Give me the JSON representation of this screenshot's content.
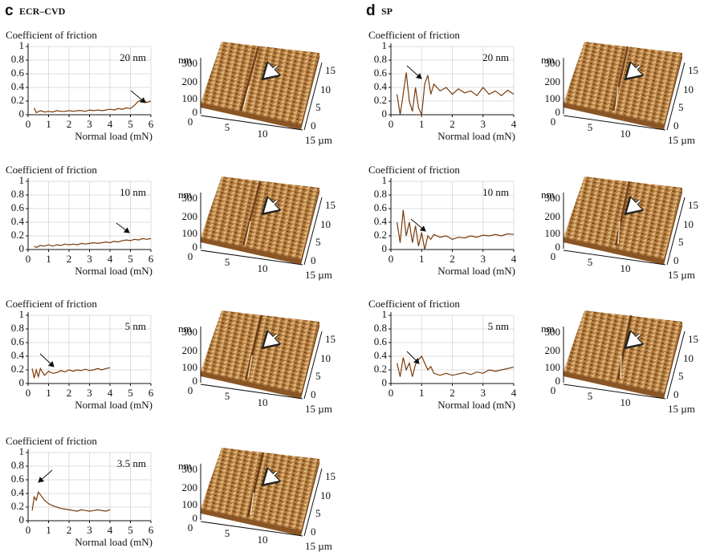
{
  "panels": [
    {
      "letter": "c",
      "title": "ECR–CVD"
    },
    {
      "letter": "d",
      "title": "SP"
    }
  ],
  "afm_axes": {
    "z_unit": "nm",
    "z_ticks": [
      "300",
      "200",
      "100",
      "0"
    ],
    "x_ticks": [
      "0",
      "5",
      "10",
      "15 µm"
    ],
    "y_ticks": [
      "15",
      "10",
      "5",
      "0"
    ]
  },
  "chart_data": [
    {
      "type": "line",
      "ylabel": "Coefficient of friction",
      "xlabel": "Normal load (mN)",
      "annotation": "20 nm",
      "color": "#7a3b0a",
      "grid": true,
      "xlim": [
        0,
        6
      ],
      "ylim": [
        0,
        1
      ],
      "xticks": [
        0,
        1,
        2,
        3,
        4,
        5,
        6
      ],
      "yticks": [
        0,
        0.2,
        0.4,
        0.6,
        0.8,
        1
      ],
      "x": [
        0.3,
        0.4,
        0.6,
        0.8,
        1,
        1.2,
        1.4,
        1.6,
        1.8,
        2,
        2.2,
        2.4,
        2.6,
        2.8,
        3,
        3.2,
        3.4,
        3.6,
        3.8,
        4,
        4.2,
        4.4,
        4.6,
        4.8,
        5,
        5.2,
        5.4,
        5.6,
        5.8,
        6
      ],
      "values": [
        0.1,
        0.03,
        0.06,
        0.04,
        0.05,
        0.04,
        0.06,
        0.05,
        0.05,
        0.06,
        0.05,
        0.06,
        0.06,
        0.05,
        0.07,
        0.06,
        0.07,
        0.06,
        0.07,
        0.08,
        0.07,
        0.09,
        0.08,
        0.1,
        0.09,
        0.14,
        0.2,
        0.22,
        0.18,
        0.2
      ]
    },
    {
      "type": "line",
      "ylabel": "Coefficient of friction",
      "xlabel": "Normal load (mN)",
      "annotation": "10 nm",
      "color": "#7a3b0a",
      "grid": true,
      "xlim": [
        0,
        6
      ],
      "ylim": [
        0,
        1
      ],
      "xticks": [
        0,
        1,
        2,
        3,
        4,
        5,
        6
      ],
      "yticks": [
        0,
        0.2,
        0.4,
        0.6,
        0.8,
        1
      ],
      "x": [
        0.3,
        0.4,
        0.6,
        0.8,
        1,
        1.2,
        1.4,
        1.6,
        1.8,
        2,
        2.2,
        2.4,
        2.6,
        2.8,
        3,
        3.2,
        3.4,
        3.6,
        3.8,
        4,
        4.2,
        4.4,
        4.6,
        4.8,
        5,
        5.2,
        5.4,
        5.6,
        5.8,
        6
      ],
      "values": [
        0.05,
        0.03,
        0.06,
        0.05,
        0.07,
        0.05,
        0.07,
        0.06,
        0.08,
        0.07,
        0.08,
        0.07,
        0.09,
        0.08,
        0.09,
        0.1,
        0.09,
        0.1,
        0.11,
        0.1,
        0.12,
        0.11,
        0.13,
        0.14,
        0.13,
        0.15,
        0.14,
        0.16,
        0.15,
        0.16
      ]
    },
    {
      "type": "line",
      "ylabel": "Coefficient of friction",
      "xlabel": "Normal load (mN)",
      "annotation": "5 nm",
      "color": "#7a3b0a",
      "grid": true,
      "xlim": [
        0,
        6
      ],
      "ylim": [
        0,
        1
      ],
      "xticks": [
        0,
        1,
        2,
        3,
        4,
        5,
        6
      ],
      "yticks": [
        0,
        0.2,
        0.4,
        0.6,
        0.8,
        1
      ],
      "x": [
        0.2,
        0.3,
        0.4,
        0.5,
        0.6,
        0.8,
        1,
        1.2,
        1.4,
        1.6,
        1.8,
        2,
        2.2,
        2.4,
        2.6,
        2.8,
        3,
        3.2,
        3.4,
        3.6,
        3.8,
        4
      ],
      "values": [
        0.22,
        0.08,
        0.2,
        0.1,
        0.22,
        0.12,
        0.18,
        0.15,
        0.16,
        0.19,
        0.17,
        0.2,
        0.18,
        0.2,
        0.19,
        0.21,
        0.19,
        0.2,
        0.22,
        0.2,
        0.22,
        0.23
      ]
    },
    {
      "type": "line",
      "ylabel": "Coefficient of friction",
      "xlabel": "Normal load (mN)",
      "annotation": "3.5 nm",
      "color": "#7a3b0a",
      "grid": true,
      "xlim": [
        0,
        6
      ],
      "ylim": [
        0,
        1
      ],
      "xticks": [
        0,
        1,
        2,
        3,
        4,
        5,
        6
      ],
      "yticks": [
        0,
        0.2,
        0.4,
        0.6,
        0.8,
        1
      ],
      "x": [
        0.2,
        0.3,
        0.4,
        0.5,
        0.6,
        0.8,
        1,
        1.2,
        1.4,
        1.6,
        1.8,
        2,
        2.2,
        2.4,
        2.6,
        2.8,
        3,
        3.2,
        3.4,
        3.6,
        3.8,
        4
      ],
      "values": [
        0.15,
        0.35,
        0.3,
        0.42,
        0.38,
        0.3,
        0.25,
        0.22,
        0.2,
        0.18,
        0.17,
        0.16,
        0.15,
        0.14,
        0.16,
        0.15,
        0.14,
        0.15,
        0.16,
        0.15,
        0.14,
        0.16
      ]
    },
    {
      "type": "line",
      "ylabel": "Coefficient of friction",
      "xlabel": "Normal load (mN)",
      "annotation": "20 nm",
      "color": "#7a3b0a",
      "grid": true,
      "xlim": [
        0,
        4
      ],
      "ylim": [
        0,
        1
      ],
      "xticks": [
        0,
        1,
        2,
        3,
        4
      ],
      "yticks": [
        0,
        0.2,
        0.4,
        0.6,
        0.8,
        1
      ],
      "x": [
        0.2,
        0.3,
        0.4,
        0.5,
        0.6,
        0.7,
        0.8,
        0.9,
        1,
        1.1,
        1.2,
        1.3,
        1.4,
        1.6,
        1.8,
        2,
        2.2,
        2.4,
        2.6,
        2.8,
        3,
        3.2,
        3.4,
        3.6,
        3.8,
        4
      ],
      "values": [
        0.3,
        0,
        0.3,
        0.62,
        0.2,
        0.05,
        0.4,
        0.1,
        0,
        0.45,
        0.58,
        0.3,
        0.45,
        0.35,
        0.4,
        0.3,
        0.38,
        0.32,
        0.35,
        0.28,
        0.4,
        0.3,
        0.35,
        0.28,
        0.36,
        0.3
      ]
    },
    {
      "type": "line",
      "ylabel": "Coefficient of friction",
      "xlabel": "Normal load (mN)",
      "annotation": "10 nm",
      "color": "#7a3b0a",
      "grid": true,
      "xlim": [
        0,
        4
      ],
      "ylim": [
        0,
        1
      ],
      "xticks": [
        0,
        1,
        2,
        3,
        4
      ],
      "yticks": [
        0,
        0.2,
        0.4,
        0.6,
        0.8,
        1
      ],
      "x": [
        0.2,
        0.3,
        0.4,
        0.5,
        0.6,
        0.7,
        0.8,
        0.9,
        1,
        1.1,
        1.2,
        1.3,
        1.4,
        1.6,
        1.8,
        2,
        2.2,
        2.4,
        2.6,
        2.8,
        3,
        3.2,
        3.4,
        3.6,
        3.8,
        4
      ],
      "values": [
        0.4,
        0.1,
        0.58,
        0.2,
        0.4,
        0.1,
        0.35,
        0.05,
        0.25,
        0,
        0.2,
        0.15,
        0.22,
        0.18,
        0.2,
        0.15,
        0.18,
        0.17,
        0.2,
        0.18,
        0.21,
        0.2,
        0.22,
        0.2,
        0.23,
        0.22
      ]
    },
    {
      "type": "line",
      "ylabel": "Coefficient of friction",
      "xlabel": "Normal load (mN)",
      "annotation": "5 nm",
      "color": "#7a3b0a",
      "grid": true,
      "xlim": [
        0,
        4
      ],
      "ylim": [
        0,
        1
      ],
      "xticks": [
        0,
        1,
        2,
        3,
        4
      ],
      "yticks": [
        0,
        0.2,
        0.4,
        0.6,
        0.8,
        1
      ],
      "x": [
        0.2,
        0.3,
        0.4,
        0.5,
        0.6,
        0.7,
        0.8,
        0.9,
        1,
        1.1,
        1.2,
        1.3,
        1.4,
        1.6,
        1.8,
        2,
        2.2,
        2.4,
        2.6,
        2.8,
        3,
        3.2,
        3.4,
        3.6,
        3.8,
        4
      ],
      "values": [
        0.3,
        0.1,
        0.38,
        0.2,
        0.3,
        0.1,
        0.28,
        0.35,
        0.4,
        0.3,
        0.2,
        0.25,
        0.15,
        0.12,
        0.15,
        0.12,
        0.14,
        0.16,
        0.13,
        0.17,
        0.15,
        0.2,
        0.18,
        0.2,
        0.22,
        0.24
      ]
    }
  ]
}
